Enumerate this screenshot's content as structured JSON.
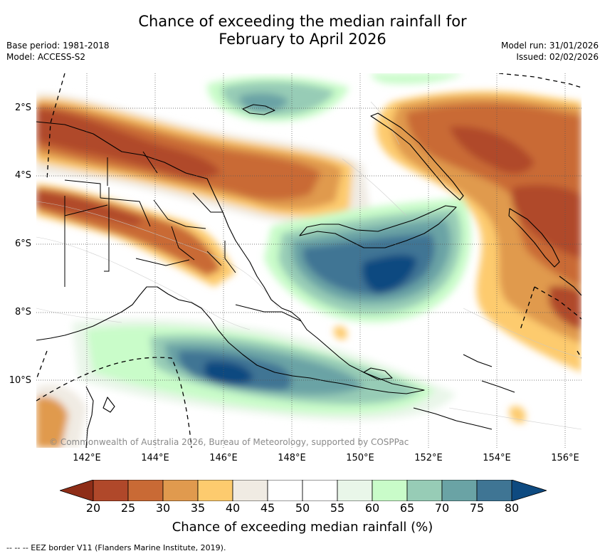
{
  "title_line1": "Chance of exceeding the median rainfall for",
  "title_line2": "February to April 2026",
  "base_period": "Base period: 1981-2018",
  "model": "Model: ACCESS-S2",
  "model_run": "Model run: 31/01/2026",
  "issued": "Issued: 02/02/2026",
  "copyright": "© Commonwealth of Australia 2026, Bureau of Meteorology, supported by COSPPac",
  "lat_labels": [
    "2°S",
    "4°S",
    "6°S",
    "8°S",
    "10°S"
  ],
  "lon_labels": [
    "142°E",
    "144°E",
    "146°E",
    "148°E",
    "150°E",
    "152°E",
    "154°E",
    "156°E"
  ],
  "colorbar": {
    "ticks": [
      "20",
      "25",
      "30",
      "35",
      "40",
      "45",
      "50",
      "55",
      "60",
      "65",
      "70",
      "75",
      "80"
    ],
    "colors": [
      "#8e2d17",
      "#b0482a",
      "#c96a35",
      "#e09a4e",
      "#fdcb6e",
      "#f0ebe3",
      "#ffffff",
      "#ffffff",
      "#e9f6e9",
      "#c9fcc9",
      "#97ccb6",
      "#6aa3a5",
      "#3f7594",
      "#0e4a80"
    ],
    "label": "Chance of exceeding median rainfall (%)"
  },
  "footnote": "-- -- -- EEZ border V11 (Flanders Marine Institute, 2019)."
}
